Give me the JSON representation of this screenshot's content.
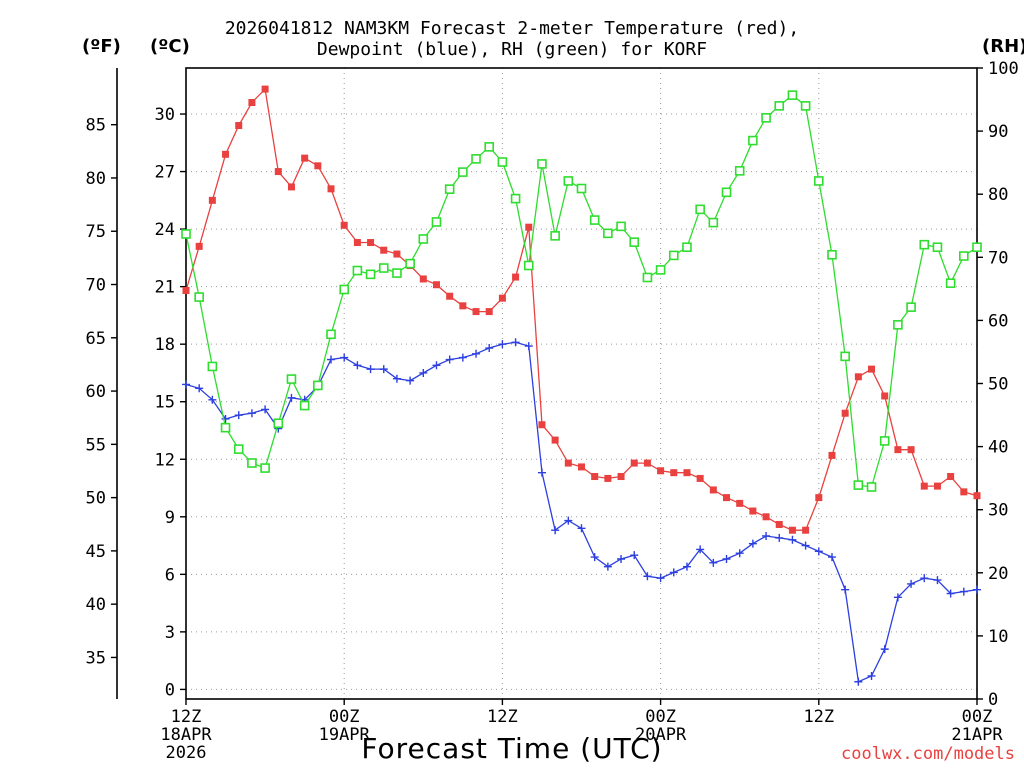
{
  "chart_data": {
    "type": "line",
    "title_line1": "2026041812 NAM3KM Forecast 2-meter Temperature (red),",
    "title_line2": "Dewpoint (blue), RH (green) for KORF",
    "unit_f": "(ºF)",
    "unit_c": "(ºC)",
    "unit_rh": "(RH)",
    "xlabel": "Forecast Time (UTC)",
    "credit": "coolwx.com/models",
    "x_range_hours": [
      0,
      60
    ],
    "c_range": [
      -0.5,
      32.4
    ],
    "f_ticks": [
      35,
      40,
      45,
      50,
      55,
      60,
      65,
      70,
      75,
      80,
      85
    ],
    "c_ticks": [
      0,
      3,
      6,
      9,
      12,
      15,
      18,
      21,
      24,
      27,
      30
    ],
    "rh_ticks": [
      0,
      10,
      20,
      30,
      40,
      50,
      60,
      70,
      80,
      90,
      100
    ],
    "x_ticks": [
      {
        "hour": 0,
        "line1": "12Z",
        "line2": "18APR",
        "line3": "2026"
      },
      {
        "hour": 12,
        "line1": "00Z",
        "line2": "19APR",
        "line3": ""
      },
      {
        "hour": 24,
        "line1": "12Z",
        "line2": "",
        "line3": ""
      },
      {
        "hour": 36,
        "line1": "00Z",
        "line2": "20APR",
        "line3": ""
      },
      {
        "hour": 48,
        "line1": "12Z",
        "line2": "",
        "line3": ""
      },
      {
        "hour": 60,
        "line1": "00Z",
        "line2": "21APR",
        "line3": ""
      }
    ],
    "series": [
      {
        "name": "2-meter Temperature",
        "units": "C",
        "color": "#e8413f",
        "marker": "filled-square",
        "values": [
          20.8,
          23.1,
          25.5,
          27.9,
          29.4,
          30.6,
          31.3,
          27.0,
          26.2,
          27.7,
          27.3,
          26.1,
          24.2,
          23.3,
          23.3,
          22.9,
          22.7,
          22.1,
          21.4,
          21.1,
          20.5,
          20.0,
          19.7,
          19.7,
          20.4,
          21.5,
          24.1,
          13.8,
          13.0,
          11.8,
          11.6,
          11.1,
          11.0,
          11.1,
          11.8,
          11.8,
          11.4,
          11.3,
          11.3,
          11.0,
          10.4,
          10.0,
          9.7,
          9.3,
          9.0,
          8.6,
          8.3,
          8.3,
          10.0,
          12.2,
          14.4,
          16.3,
          16.7,
          15.3,
          12.5,
          12.5,
          10.6,
          10.6,
          11.1,
          10.3,
          10.1
        ]
      },
      {
        "name": "Dewpoint",
        "units": "C",
        "color": "#2c3fe0",
        "marker": "plus",
        "values": [
          15.9,
          15.7,
          15.1,
          14.1,
          14.3,
          14.4,
          14.6,
          13.6,
          15.2,
          15.1,
          15.8,
          17.2,
          17.3,
          16.9,
          16.7,
          16.7,
          16.2,
          16.1,
          16.5,
          16.9,
          17.2,
          17.3,
          17.5,
          17.8,
          18.0,
          18.1,
          17.9,
          11.3,
          8.3,
          8.8,
          8.4,
          6.9,
          6.4,
          6.8,
          7.0,
          5.9,
          5.8,
          6.1,
          6.4,
          7.3,
          6.6,
          6.8,
          7.1,
          7.6,
          8.0,
          7.9,
          7.8,
          7.5,
          7.2,
          6.9,
          5.2,
          0.4,
          0.7,
          2.1,
          4.8,
          5.5,
          5.8,
          5.7,
          5.0,
          5.1,
          5.2
        ]
      },
      {
        "name": "RH",
        "units": "%",
        "color": "#2edd2e",
        "marker": "open-square",
        "values": [
          73.7,
          63.7,
          52.7,
          43.0,
          39.6,
          37.4,
          36.6,
          43.7,
          50.7,
          46.5,
          49.7,
          57.8,
          64.9,
          67.9,
          67.3,
          68.3,
          67.5,
          69.0,
          72.9,
          75.6,
          80.8,
          83.5,
          85.6,
          87.5,
          85.1,
          79.3,
          68.7,
          84.8,
          73.4,
          82.1,
          80.9,
          75.9,
          73.8,
          74.9,
          72.4,
          66.8,
          68.0,
          70.3,
          71.6,
          77.6,
          75.5,
          80.3,
          83.7,
          88.5,
          92.1,
          94.0,
          95.7,
          94.0,
          82.1,
          70.4,
          54.3,
          33.9,
          33.6,
          40.9,
          59.3,
          62.1,
          72.0,
          71.6,
          65.9,
          70.2,
          71.6
        ]
      }
    ]
  }
}
